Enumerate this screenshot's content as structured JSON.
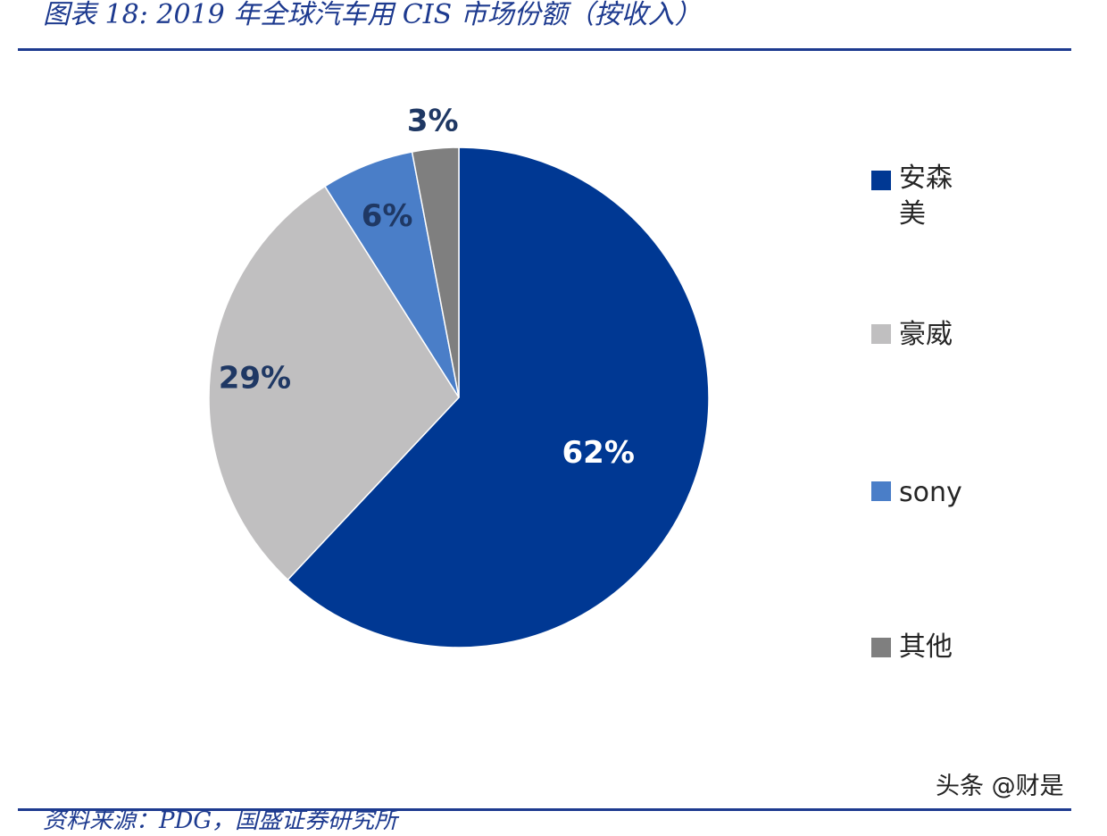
{
  "title": "图表 18: 2019 年全球汽车用 CIS 市场份额（按收入）",
  "source_text": "资料来源：PDG，国盛证券研究所",
  "watermark": "头条 @财是",
  "chart_data": {
    "type": "pie",
    "title": "",
    "start_angle": "12 o'clock",
    "direction": "clockwise",
    "legend_position": "right",
    "slices": [
      {
        "name": "安森美",
        "value": 62,
        "label": "62%",
        "color": "#003893",
        "label_color": "#ffffff"
      },
      {
        "name": "豪威",
        "value": 29,
        "label": "29%",
        "color": "#c0bfc0",
        "label_color": "#1f3864"
      },
      {
        "name": "sony",
        "value": 6,
        "label": "6%",
        "color": "#4a7ec8",
        "label_color": "#1f3864"
      },
      {
        "name": "其他",
        "value": 3,
        "label": "3%",
        "color": "#7f7f7f",
        "label_color": "#1f3864"
      }
    ]
  }
}
